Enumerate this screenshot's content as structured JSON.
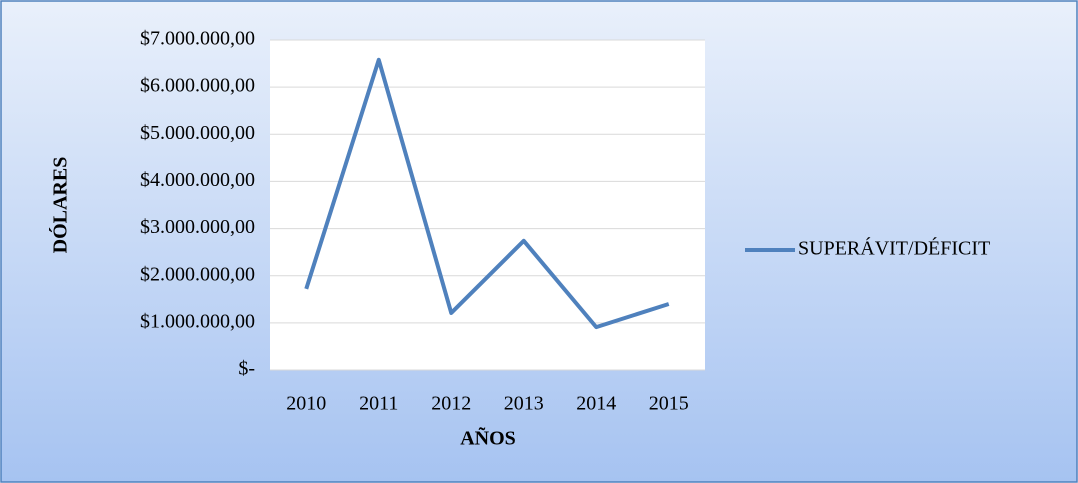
{
  "chart_data": {
    "type": "line",
    "categories": [
      "2010",
      "2011",
      "2012",
      "2013",
      "2014",
      "2015"
    ],
    "series": [
      {
        "name": "SUPERÁVIT/DÉFICIT",
        "color": "#4f81bd",
        "values": [
          1720000,
          6580000,
          1210000,
          2740000,
          910000,
          1400000
        ]
      }
    ],
    "ylim": [
      0,
      7000000
    ],
    "yticks": [
      {
        "value": 0,
        "label": "$-"
      },
      {
        "value": 1000000,
        "label": "$1.000.000,00"
      },
      {
        "value": 2000000,
        "label": "$2.000.000,00"
      },
      {
        "value": 3000000,
        "label": "$3.000.000,00"
      },
      {
        "value": 4000000,
        "label": "$4.000.000,00"
      },
      {
        "value": 5000000,
        "label": "$5.000.000,00"
      },
      {
        "value": 6000000,
        "label": "$6.000.000,00"
      },
      {
        "value": 7000000,
        "label": "$7.000.000,00"
      }
    ],
    "xlabel": "AÑOS",
    "ylabel": "DÓLARES",
    "grid": true,
    "legend": "right"
  }
}
